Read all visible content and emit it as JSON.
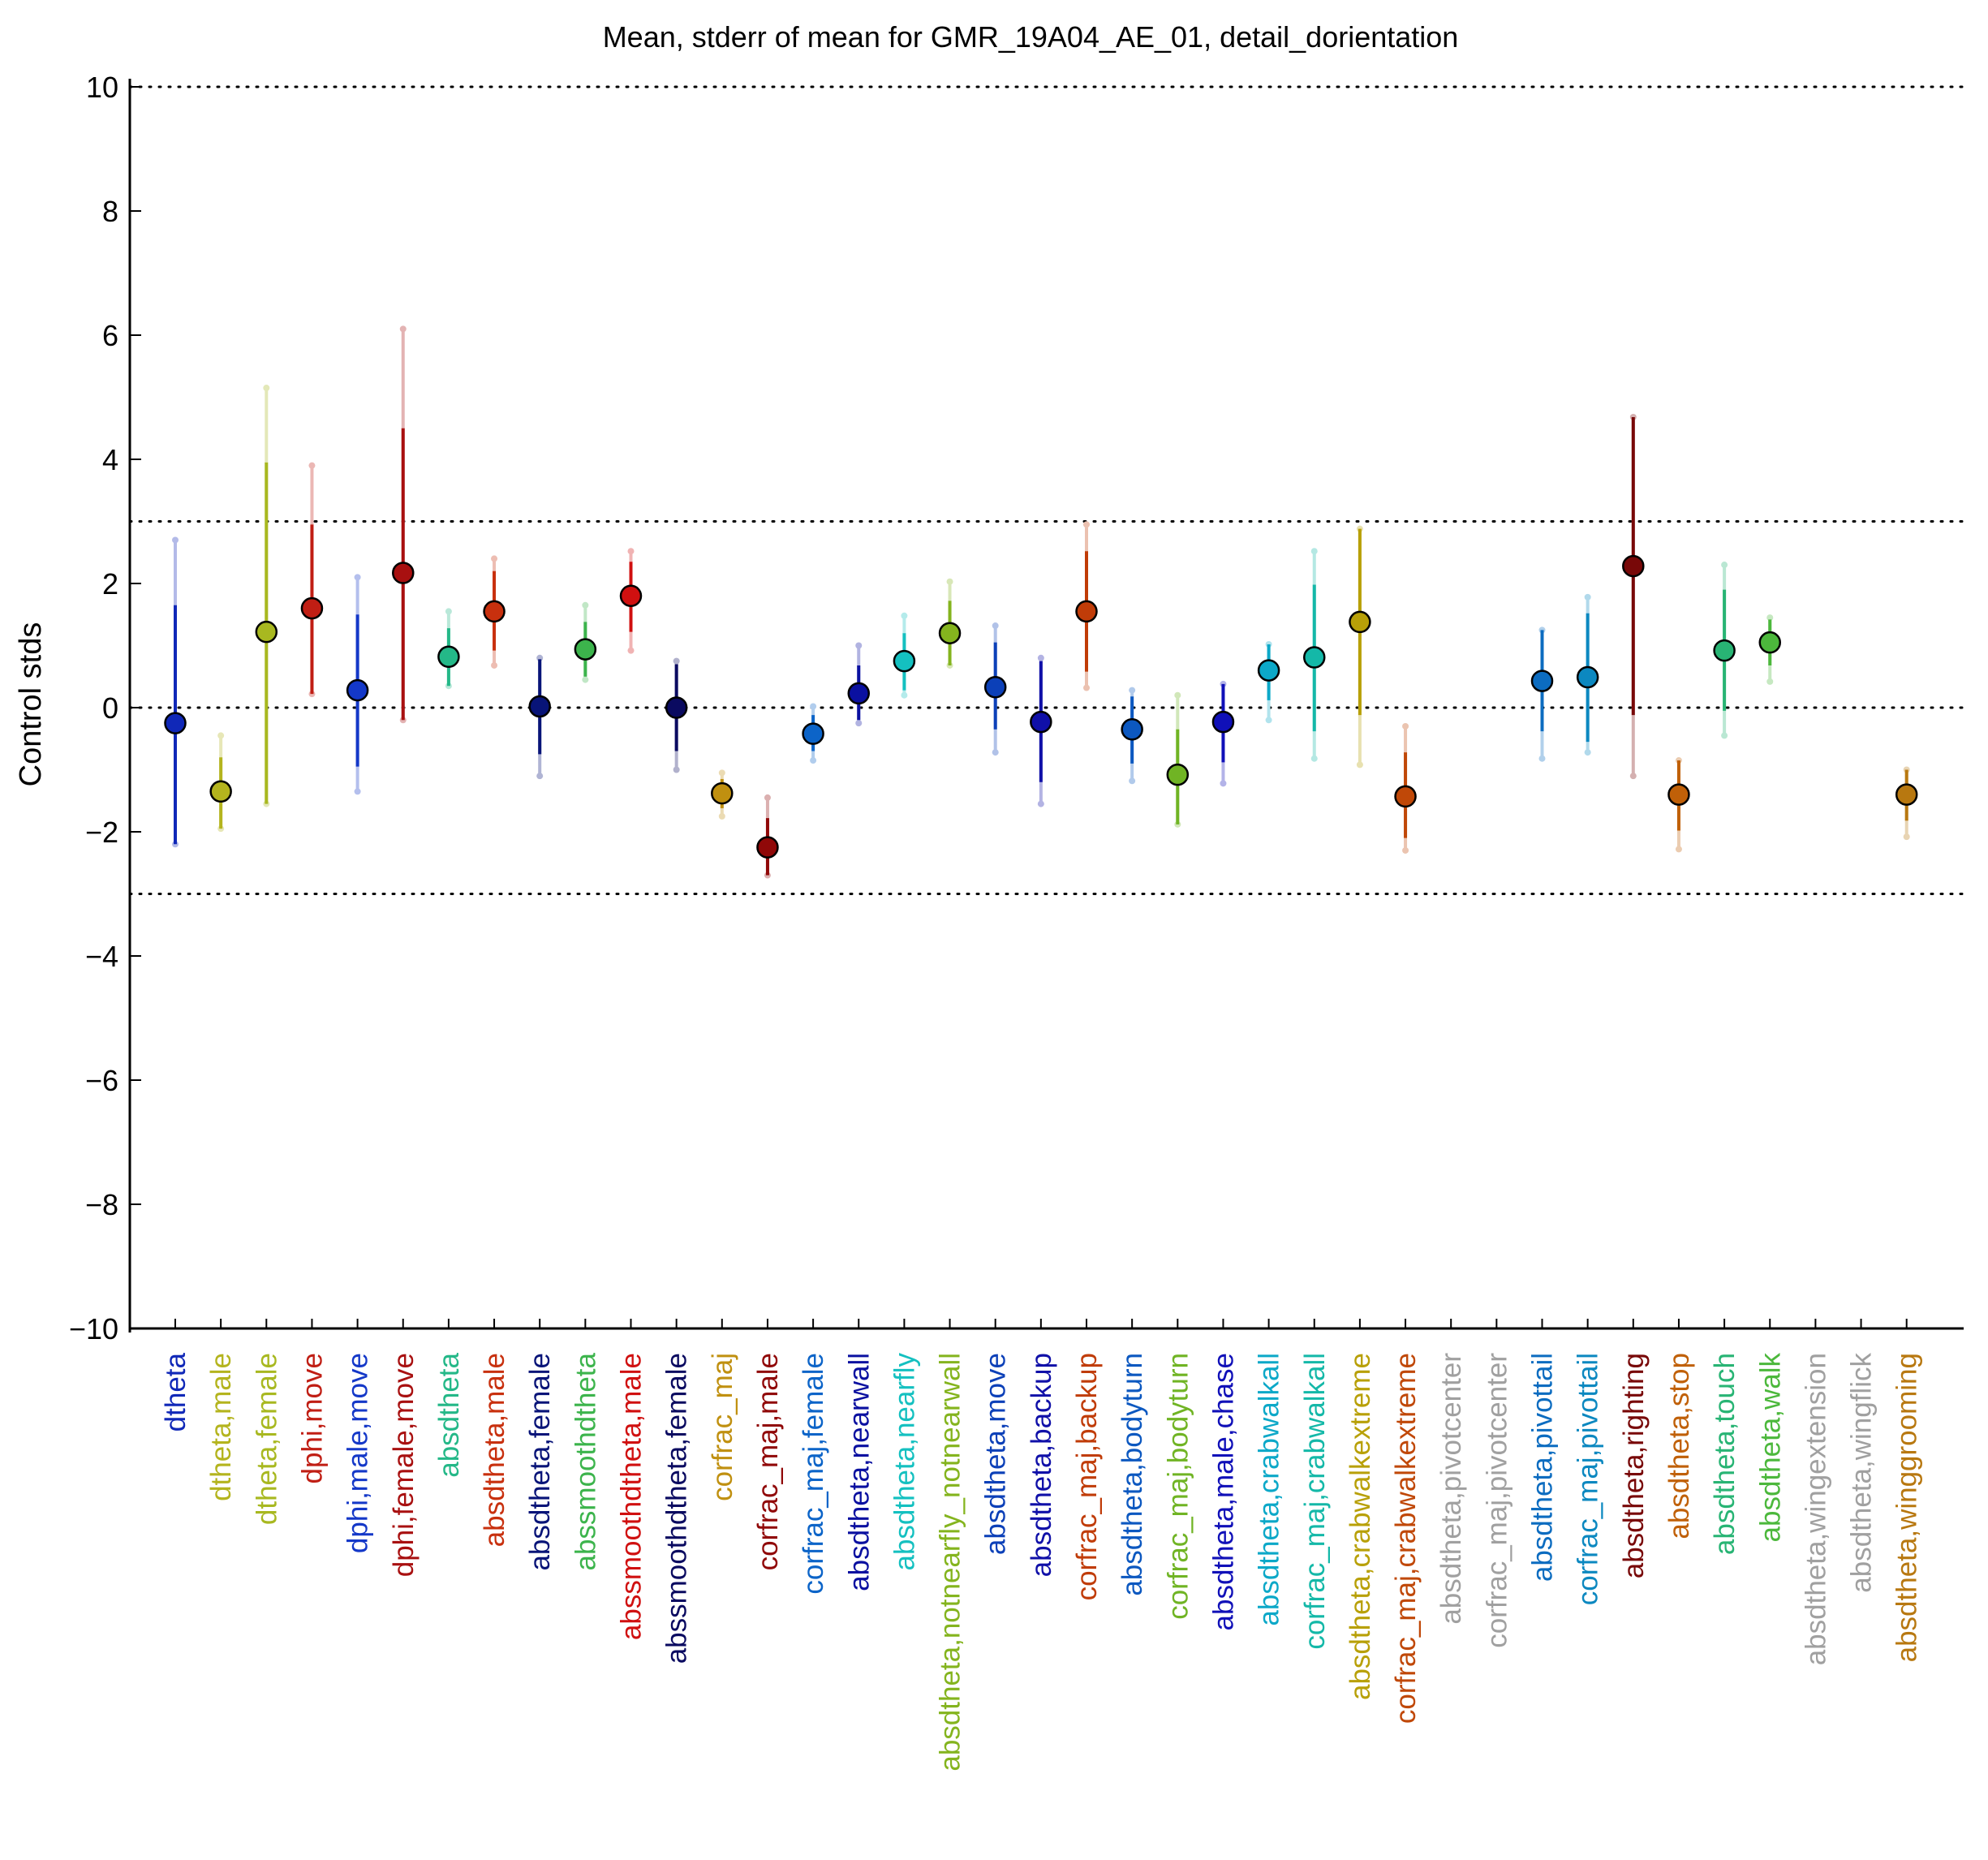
{
  "chart_data": {
    "type": "scatter",
    "title": "Mean, stderr of mean for GMR_19A04_AE_01, detail_dorientation",
    "ylabel": "Control stds",
    "ylim": [
      -10,
      10
    ],
    "yticks": [
      -10,
      -8,
      -6,
      -4,
      -2,
      0,
      2,
      4,
      6,
      8,
      10
    ],
    "ytick_labels": [
      "−10",
      "−8",
      "−6",
      "−4",
      "−2",
      "0",
      "2",
      "4",
      "6",
      "8",
      "10"
    ],
    "reference_lines": [
      10,
      3,
      0,
      -3,
      -10
    ],
    "grid": false,
    "legend": "none",
    "points": [
      {
        "label": "dtheta",
        "color": "#1028b8",
        "mean": -0.25,
        "err_lo": -2.2,
        "err_hi": 1.65,
        "range_lo": -2.2,
        "range_hi": 2.7,
        "valid": true
      },
      {
        "label": "dtheta,male",
        "color": "#b4b41e",
        "mean": -1.35,
        "err_lo": -1.95,
        "err_hi": -0.8,
        "range_lo": -1.95,
        "range_hi": -0.45,
        "valid": true
      },
      {
        "label": "dtheta,female",
        "color": "#a8b820",
        "mean": 1.22,
        "err_lo": -1.55,
        "err_hi": 3.95,
        "range_lo": -1.55,
        "range_hi": 5.15,
        "valid": true
      },
      {
        "label": "dphi,move",
        "color": "#c01e14",
        "mean": 1.6,
        "err_lo": 0.22,
        "err_hi": 2.95,
        "range_lo": 0.22,
        "range_hi": 3.9,
        "valid": true
      },
      {
        "label": "dphi,male,move",
        "color": "#1438c8",
        "mean": 0.28,
        "err_lo": -0.95,
        "err_hi": 1.5,
        "range_lo": -1.35,
        "range_hi": 2.1,
        "valid": true
      },
      {
        "label": "dphi,female,move",
        "color": "#a81010",
        "mean": 2.17,
        "err_lo": -0.2,
        "err_hi": 4.5,
        "range_lo": -0.2,
        "range_hi": 6.1,
        "valid": true
      },
      {
        "label": "absdtheta",
        "color": "#24b888",
        "mean": 0.82,
        "err_lo": 0.35,
        "err_hi": 1.28,
        "range_lo": 0.35,
        "range_hi": 1.55,
        "valid": true
      },
      {
        "label": "absdtheta,male",
        "color": "#c8300e",
        "mean": 1.55,
        "err_lo": 0.92,
        "err_hi": 2.2,
        "range_lo": 0.68,
        "range_hi": 2.4,
        "valid": true
      },
      {
        "label": "absdtheta,female",
        "color": "#081478",
        "mean": 0.02,
        "err_lo": -0.75,
        "err_hi": 0.78,
        "range_lo": -1.1,
        "range_hi": 0.8,
        "valid": true
      },
      {
        "label": "abssmoothdtheta",
        "color": "#3cb44c",
        "mean": 0.94,
        "err_lo": 0.5,
        "err_hi": 1.38,
        "range_lo": 0.45,
        "range_hi": 1.65,
        "valid": true
      },
      {
        "label": "abssmoothdtheta,male",
        "color": "#d01010",
        "mean": 1.8,
        "err_lo": 1.22,
        "err_hi": 2.35,
        "range_lo": 0.92,
        "range_hi": 2.52,
        "valid": true
      },
      {
        "label": "abssmoothdtheta,female",
        "color": "#0a0a60",
        "mean": 0.0,
        "err_lo": -0.7,
        "err_hi": 0.7,
        "range_lo": -1.0,
        "range_hi": 0.75,
        "valid": true
      },
      {
        "label": "corfrac_maj",
        "color": "#c09010",
        "mean": -1.38,
        "err_lo": -1.62,
        "err_hi": -1.15,
        "range_lo": -1.75,
        "range_hi": -1.05,
        "valid": true
      },
      {
        "label": "corfrac_maj,male",
        "color": "#900808",
        "mean": -2.25,
        "err_lo": -2.7,
        "err_hi": -1.78,
        "range_lo": -2.7,
        "range_hi": -1.45,
        "valid": true
      },
      {
        "label": "corfrac_maj,female",
        "color": "#0c64c8",
        "mean": -0.42,
        "err_lo": -0.7,
        "err_hi": -0.12,
        "range_lo": -0.85,
        "range_hi": 0.02,
        "valid": true
      },
      {
        "label": "absdtheta,nearwall",
        "color": "#0a10a0",
        "mean": 0.23,
        "err_lo": -0.2,
        "err_hi": 0.68,
        "range_lo": -0.25,
        "range_hi": 1.0,
        "valid": true
      },
      {
        "label": "absdtheta,nearfly",
        "color": "#14c0c0",
        "mean": 0.75,
        "err_lo": 0.28,
        "err_hi": 1.2,
        "range_lo": 0.2,
        "range_hi": 1.48,
        "valid": true
      },
      {
        "label": "absdtheta,notnearfly_notnearwall",
        "color": "#84b41e",
        "mean": 1.2,
        "err_lo": 0.68,
        "err_hi": 1.72,
        "range_lo": 0.68,
        "range_hi": 2.03,
        "valid": true
      },
      {
        "label": "absdtheta,move",
        "color": "#0c40b8",
        "mean": 0.33,
        "err_lo": -0.35,
        "err_hi": 1.05,
        "range_lo": -0.72,
        "range_hi": 1.32,
        "valid": true
      },
      {
        "label": "absdtheta,backup",
        "color": "#1010a8",
        "mean": -0.23,
        "err_lo": -1.2,
        "err_hi": 0.75,
        "range_lo": -1.55,
        "range_hi": 0.8,
        "valid": true
      },
      {
        "label": "corfrac_maj,backup",
        "color": "#c03c08",
        "mean": 1.55,
        "err_lo": 0.58,
        "err_hi": 2.52,
        "range_lo": 0.32,
        "range_hi": 2.95,
        "valid": true
      },
      {
        "label": "absdtheta,bodyturn",
        "color": "#0c58c0",
        "mean": -0.35,
        "err_lo": -0.9,
        "err_hi": 0.18,
        "range_lo": -1.18,
        "range_hi": 0.28,
        "valid": true
      },
      {
        "label": "corfrac_maj,bodyturn",
        "color": "#70b424",
        "mean": -1.08,
        "err_lo": -1.88,
        "err_hi": -0.35,
        "range_lo": -1.88,
        "range_hi": 0.2,
        "valid": true
      },
      {
        "label": "absdtheta,male,chase",
        "color": "#1010b8",
        "mean": -0.23,
        "err_lo": -0.88,
        "err_hi": 0.38,
        "range_lo": -1.22,
        "range_hi": 0.38,
        "valid": true
      },
      {
        "label": "absdtheta,crabwalkall",
        "color": "#0ca8c8",
        "mean": 0.6,
        "err_lo": 0.12,
        "err_hi": 1.02,
        "range_lo": -0.2,
        "range_hi": 1.02,
        "valid": true
      },
      {
        "label": "corfrac_maj,crabwalkall",
        "color": "#14b8a8",
        "mean": 0.81,
        "err_lo": -0.38,
        "err_hi": 1.98,
        "range_lo": -0.82,
        "range_hi": 2.52,
        "valid": true
      },
      {
        "label": "absdtheta,crabwalkextreme",
        "color": "#b8a008",
        "mean": 1.38,
        "err_lo": -0.12,
        "err_hi": 2.88,
        "range_lo": -0.92,
        "range_hi": 2.88,
        "valid": true
      },
      {
        "label": "corfrac_maj,crabwalkextreme",
        "color": "#c04808",
        "mean": -1.43,
        "err_lo": -2.1,
        "err_hi": -0.72,
        "range_lo": -2.3,
        "range_hi": -0.3,
        "valid": true
      },
      {
        "label": "absdtheta,pivotcenter",
        "color": "#a0a0a0",
        "mean": null,
        "err_lo": null,
        "err_hi": null,
        "range_lo": null,
        "range_hi": null,
        "valid": false
      },
      {
        "label": "corfrac_maj,pivotcenter",
        "color": "#a0a0a0",
        "mean": null,
        "err_lo": null,
        "err_hi": null,
        "range_lo": null,
        "range_hi": null,
        "valid": false
      },
      {
        "label": "absdtheta,pivottail",
        "color": "#0c6cc0",
        "mean": 0.43,
        "err_lo": -0.38,
        "err_hi": 1.25,
        "range_lo": -0.82,
        "range_hi": 1.25,
        "valid": true
      },
      {
        "label": "corfrac_maj,pivottail",
        "color": "#0c88c0",
        "mean": 0.49,
        "err_lo": -0.55,
        "err_hi": 1.52,
        "range_lo": -0.72,
        "range_hi": 1.78,
        "valid": true
      },
      {
        "label": "absdtheta,righting",
        "color": "#780808",
        "mean": 2.28,
        "err_lo": -0.12,
        "err_hi": 4.68,
        "range_lo": -1.1,
        "range_hi": 4.68,
        "valid": true
      },
      {
        "label": "absdtheta,stop",
        "color": "#c06008",
        "mean": -1.4,
        "err_lo": -1.98,
        "err_hi": -0.85,
        "range_lo": -2.28,
        "range_hi": -0.85,
        "valid": true
      },
      {
        "label": "absdtheta,touch",
        "color": "#28b474",
        "mean": 0.92,
        "err_lo": -0.05,
        "err_hi": 1.9,
        "range_lo": -0.45,
        "range_hi": 2.3,
        "valid": true
      },
      {
        "label": "absdtheta,walk",
        "color": "#4cb83c",
        "mean": 1.05,
        "err_lo": 0.68,
        "err_hi": 1.42,
        "range_lo": 0.42,
        "range_hi": 1.45,
        "valid": true
      },
      {
        "label": "absdtheta,wingextension",
        "color": "#a0a0a0",
        "mean": null,
        "err_lo": null,
        "err_hi": null,
        "range_lo": null,
        "range_hi": null,
        "valid": false
      },
      {
        "label": "absdtheta,wingflick",
        "color": "#a0a0a0",
        "mean": null,
        "err_lo": null,
        "err_hi": null,
        "range_lo": null,
        "range_hi": null,
        "valid": false
      },
      {
        "label": "absdtheta,winggrooming",
        "color": "#b87810",
        "mean": -1.4,
        "err_lo": -1.82,
        "err_hi": -1.0,
        "range_lo": -2.08,
        "range_hi": -1.0,
        "valid": true
      }
    ]
  }
}
